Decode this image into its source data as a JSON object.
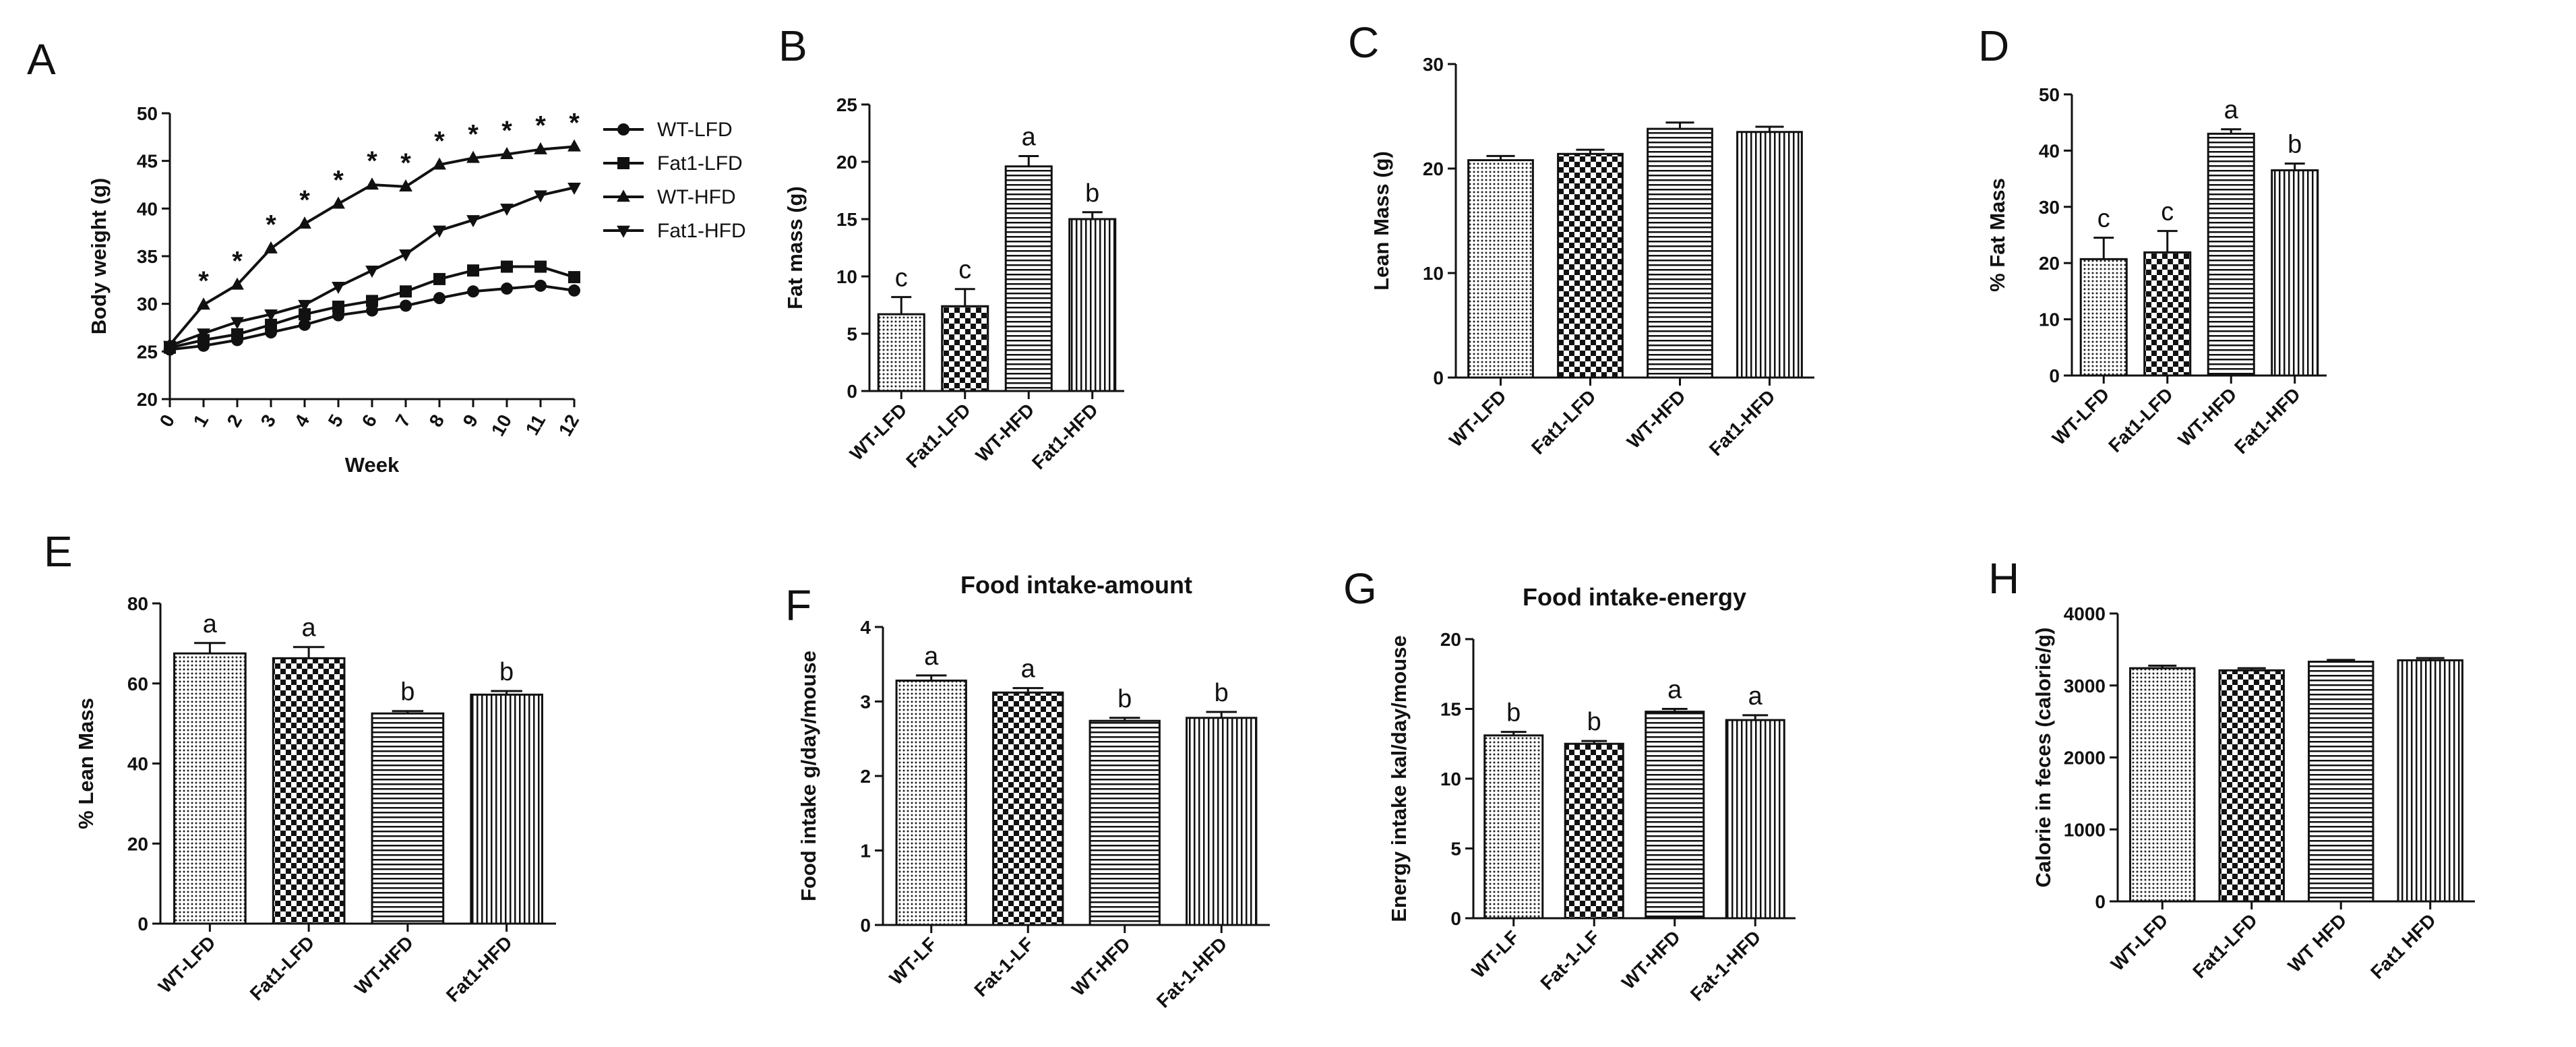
{
  "patterns": [
    "dots",
    "checker",
    "hlines",
    "vlines"
  ],
  "chart_data": [
    {
      "id": "A",
      "type": "line",
      "panel_label": "A",
      "title": "",
      "xlabel": "Week",
      "ylabel": "Body weight (g)",
      "ylim": [
        20,
        50
      ],
      "yticks": [
        20,
        25,
        30,
        35,
        40,
        45,
        50
      ],
      "x": [
        0,
        1,
        2,
        3,
        4,
        5,
        6,
        7,
        8,
        9,
        10,
        11,
        12
      ],
      "legend_position": "right",
      "series": [
        {
          "name": "WT-LFD",
          "marker": "circle",
          "values": [
            25.2,
            25.6,
            26.2,
            27.0,
            27.8,
            28.8,
            29.3,
            29.8,
            30.6,
            31.3,
            31.6,
            31.9,
            31.4
          ]
        },
        {
          "name": "Fat1-LFD",
          "marker": "square",
          "values": [
            25.4,
            26.2,
            26.8,
            27.8,
            28.9,
            29.7,
            30.3,
            31.3,
            32.6,
            33.5,
            33.9,
            33.9,
            32.8
          ]
        },
        {
          "name": "WT-HFD",
          "marker": "triangle-up",
          "values": [
            25.7,
            29.9,
            32.0,
            35.8,
            38.4,
            40.5,
            42.5,
            42.3,
            44.6,
            45.3,
            45.7,
            46.2,
            46.5
          ]
        },
        {
          "name": "Fat1-HFD",
          "marker": "triangle-down",
          "values": [
            25.6,
            26.9,
            28.1,
            28.9,
            29.9,
            31.8,
            33.5,
            35.2,
            37.7,
            38.8,
            40.0,
            41.4,
            42.2
          ]
        }
      ],
      "significance": {
        "x": [
          1,
          2,
          3,
          4,
          5,
          6,
          7,
          8,
          9,
          10,
          11,
          12
        ],
        "symbol": "*"
      }
    },
    {
      "id": "B",
      "type": "bar",
      "panel_label": "B",
      "title": "",
      "ylabel": "Fat mass (g)",
      "ylim": [
        0,
        25
      ],
      "yticks": [
        0,
        5,
        10,
        15,
        20,
        25
      ],
      "categories": [
        "WT-LFD",
        "Fat1-LFD",
        "WT-HFD",
        "Fat1-HFD"
      ],
      "values": [
        6.7,
        7.4,
        19.6,
        15.0
      ],
      "errors": [
        1.5,
        1.5,
        0.9,
        0.6
      ],
      "letters": [
        "c",
        "c",
        "a",
        "b"
      ]
    },
    {
      "id": "C",
      "type": "bar",
      "panel_label": "C",
      "title": "",
      "ylabel": "Lean Mass (g)",
      "ylim": [
        0,
        30
      ],
      "yticks": [
        0,
        10,
        20,
        30
      ],
      "categories": [
        "WT-LFD",
        "Fat1-LFD",
        "WT-HFD",
        "Fat1-HFD"
      ],
      "values": [
        20.8,
        21.4,
        23.8,
        23.5
      ],
      "errors": [
        0.4,
        0.4,
        0.6,
        0.5
      ],
      "letters": [
        "",
        "",
        "",
        ""
      ]
    },
    {
      "id": "D",
      "type": "bar",
      "panel_label": "D",
      "title": "",
      "ylabel": "% Fat Mass",
      "ylim": [
        0,
        50
      ],
      "yticks": [
        0,
        10,
        20,
        30,
        40,
        50
      ],
      "categories": [
        "WT-LFD",
        "Fat1-LFD",
        "WT-HFD",
        "Fat1-HFD"
      ],
      "values": [
        20.7,
        21.9,
        43.0,
        36.5
      ],
      "errors": [
        3.8,
        3.8,
        0.8,
        1.2
      ],
      "letters": [
        "c",
        "c",
        "a",
        "b"
      ]
    },
    {
      "id": "E",
      "type": "bar",
      "panel_label": "E",
      "title": "",
      "ylabel": "% Lean Mass",
      "ylim": [
        0,
        80
      ],
      "yticks": [
        0,
        20,
        40,
        60,
        80
      ],
      "categories": [
        "WT-LFD",
        "Fat1-LFD",
        "WT-HFD",
        "Fat1-HFD"
      ],
      "values": [
        67.5,
        66.3,
        52.5,
        57.2
      ],
      "errors": [
        2.6,
        2.8,
        0.6,
        0.9
      ],
      "letters": [
        "a",
        "a",
        "b",
        "b"
      ]
    },
    {
      "id": "F",
      "type": "bar",
      "panel_label": "F",
      "title": "Food intake-amount",
      "ylabel": "Food intake g/day/mouse",
      "ylim": [
        0,
        4
      ],
      "yticks": [
        0,
        1,
        2,
        3,
        4
      ],
      "categories": [
        "WT-LF",
        "Fat-1-LF",
        "WT-HFD",
        "Fat-1-HFD"
      ],
      "values": [
        3.28,
        3.12,
        2.74,
        2.78
      ],
      "errors": [
        0.07,
        0.06,
        0.04,
        0.08
      ],
      "letters": [
        "a",
        "a",
        "b",
        "b"
      ]
    },
    {
      "id": "G",
      "type": "bar",
      "panel_label": "G",
      "title": "Food intake-energy",
      "ylabel": "Energy intake kal/day/mouse",
      "ylim": [
        0,
        20
      ],
      "yticks": [
        0,
        5,
        10,
        15,
        20
      ],
      "categories": [
        "WT-LF",
        "Fat-1-LF",
        "WT-HFD",
        "Fat-1-HFD"
      ],
      "values": [
        13.1,
        12.5,
        14.8,
        14.2
      ],
      "errors": [
        0.25,
        0.2,
        0.2,
        0.35
      ],
      "letters": [
        "b",
        "b",
        "a",
        "a"
      ]
    },
    {
      "id": "H",
      "type": "bar",
      "panel_label": "H",
      "title": "",
      "ylabel": "Calorie in feces (calorie/g)",
      "ylim": [
        0,
        4000
      ],
      "yticks": [
        0,
        1000,
        2000,
        3000,
        4000
      ],
      "categories": [
        "WT-LFD",
        "Fat1-LFD",
        "WT HFD",
        "Fat1 HFD"
      ],
      "values": [
        3240,
        3210,
        3330,
        3350
      ],
      "errors": [
        35,
        30,
        25,
        30
      ],
      "letters": [
        "",
        "",
        "",
        ""
      ]
    }
  ]
}
